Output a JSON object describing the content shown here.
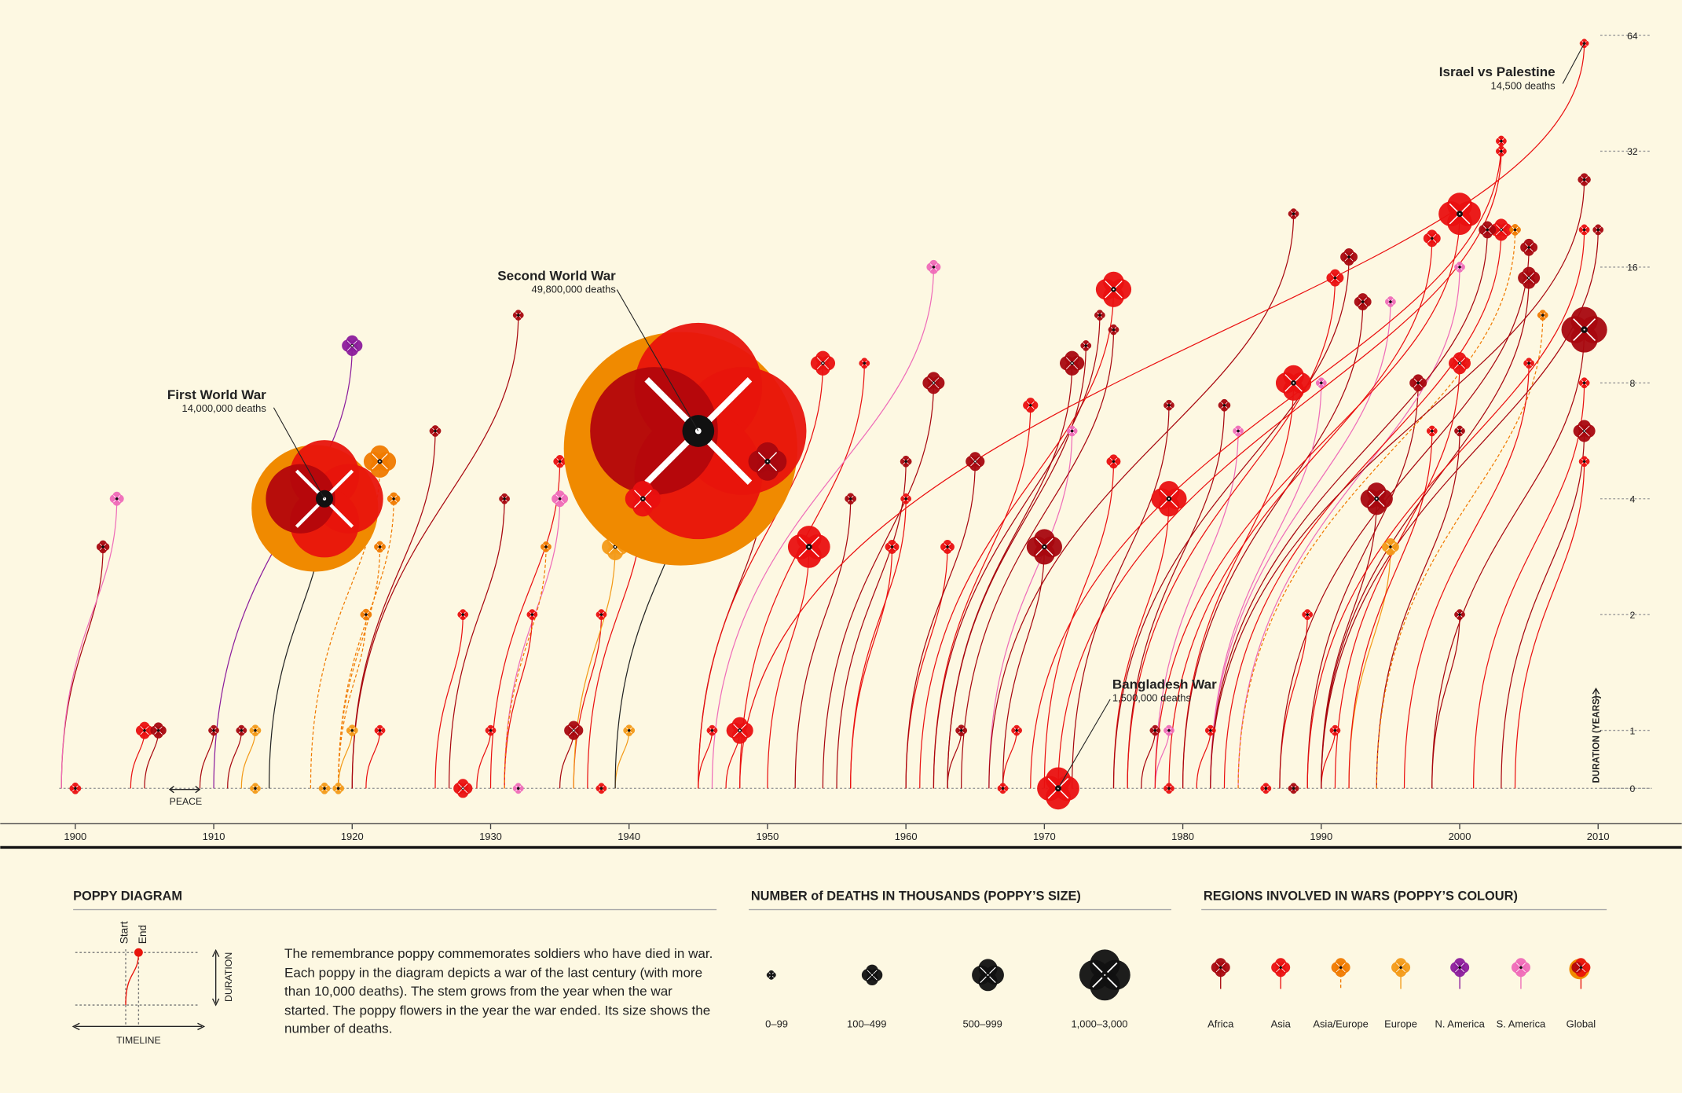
{
  "chart_data": {
    "type": "poppy",
    "xlim": [
      1900,
      2010
    ],
    "xticks": [
      1900,
      1910,
      1920,
      1930,
      1940,
      1950,
      1960,
      1970,
      1980,
      1990,
      2000,
      2010
    ],
    "ylim": [
      0,
      64
    ],
    "yticks": [
      0,
      1,
      2,
      4,
      8,
      16,
      32,
      64
    ],
    "ylog": true,
    "y_label": "DURATION (YEARS)",
    "peace_label": "PEACE",
    "regions": [
      {
        "name": "Africa",
        "color": "#a8070f"
      },
      {
        "name": "Asia",
        "color": "#ea1010"
      },
      {
        "name": "Asia/Europe",
        "color": "#f07a00",
        "dashed": true
      },
      {
        "name": "Europe",
        "color": "#f39a18"
      },
      {
        "name": "N. America",
        "color": "#8c1c9c"
      },
      {
        "name": "S. America",
        "color": "#ef6cb8"
      },
      {
        "name": "Global",
        "color": "#e8140c"
      }
    ],
    "wars": [
      {
        "start": 1900,
        "end": 1900,
        "deaths": 40,
        "region": "Asia"
      },
      {
        "start": 1899,
        "end": 1902,
        "deaths": 60,
        "region": "Africa"
      },
      {
        "start": 1899,
        "end": 1903,
        "deaths": 80,
        "region": "S. America"
      },
      {
        "start": 1904,
        "end": 1905,
        "deaths": 150,
        "region": "Asia"
      },
      {
        "start": 1905,
        "end": 1906,
        "deaths": 120,
        "region": "Africa"
      },
      {
        "start": 1909,
        "end": 1910,
        "deaths": 30,
        "region": "Africa"
      },
      {
        "start": 1911,
        "end": 1912,
        "deaths": 30,
        "region": "Africa"
      },
      {
        "start": 1912,
        "end": 1913,
        "deaths": 40,
        "region": "Europe"
      },
      {
        "start": 1913,
        "end": 1913,
        "deaths": 30,
        "region": "Europe"
      },
      {
        "start": 1910,
        "end": 1920,
        "deaths": 250,
        "region": "N. America"
      },
      {
        "start": 1914,
        "end": 1918,
        "deaths": 14000,
        "region": "Global",
        "name": "First World War",
        "deaths_label": "14,000,000 deaths"
      },
      {
        "start": 1917,
        "end": 1922,
        "deaths": 800,
        "region": "Asia/Europe"
      },
      {
        "start": 1919,
        "end": 1923,
        "deaths": 60,
        "region": "Asia/Europe"
      },
      {
        "start": 1919,
        "end": 1921,
        "deaths": 40,
        "region": "Asia/Europe"
      },
      {
        "start": 1919,
        "end": 1922,
        "deaths": 40,
        "region": "Asia/Europe"
      },
      {
        "start": 1919,
        "end": 1920,
        "deaths": 40,
        "region": "Europe"
      },
      {
        "start": 1921,
        "end": 1922,
        "deaths": 30,
        "region": "Asia"
      },
      {
        "start": 1918,
        "end": 1918,
        "deaths": 40,
        "region": "Europe"
      },
      {
        "start": 1919,
        "end": 1919,
        "deaths": 40,
        "region": "Europe"
      },
      {
        "start": 1920,
        "end": 1926,
        "deaths": 40,
        "region": "Africa"
      },
      {
        "start": 1926,
        "end": 1928,
        "deaths": 30,
        "region": "Asia"
      },
      {
        "start": 1928,
        "end": 1928,
        "deaths": 200,
        "region": "Asia"
      },
      {
        "start": 1929,
        "end": 1930,
        "deaths": 30,
        "region": "Asia"
      },
      {
        "start": 1927,
        "end": 1931,
        "deaths": 30,
        "region": "Africa"
      },
      {
        "start": 1920,
        "end": 1932,
        "deaths": 30,
        "region": "Africa"
      },
      {
        "start": 1932,
        "end": 1932,
        "deaths": 30,
        "region": "S. America"
      },
      {
        "start": 1931,
        "end": 1935,
        "deaths": 130,
        "region": "S. America"
      },
      {
        "start": 1931,
        "end": 1933,
        "deaths": 30,
        "region": "Asia"
      },
      {
        "start": 1931,
        "end": 1934,
        "deaths": 30,
        "region": "Asia/Europe"
      },
      {
        "start": 1930,
        "end": 1935,
        "deaths": 60,
        "region": "Asia"
      },
      {
        "start": 1935,
        "end": 1936,
        "deaths": 200,
        "region": "Africa"
      },
      {
        "start": 1936,
        "end": 1938,
        "deaths": 30,
        "region": "Asia"
      },
      {
        "start": 1936,
        "end": 1939,
        "deaths": 500,
        "region": "Europe"
      },
      {
        "start": 1938,
        "end": 1938,
        "deaths": 30,
        "region": "Asia"
      },
      {
        "start": 1939,
        "end": 1940,
        "deaths": 40,
        "region": "Europe"
      },
      {
        "start": 1939,
        "end": 1945,
        "deaths": 49800,
        "region": "Global",
        "name": "Second World War",
        "deaths_label": "49,800,000 deaths"
      },
      {
        "start": 1937,
        "end": 1941,
        "deaths": 1000,
        "region": "Asia"
      },
      {
        "start": 1945,
        "end": 1950,
        "deaths": 1200,
        "region": "Africa"
      },
      {
        "start": 1947,
        "end": 1948,
        "deaths": 500,
        "region": "Asia"
      },
      {
        "start": 1945,
        "end": 1946,
        "deaths": 30,
        "region": "Asia"
      },
      {
        "start": 1950,
        "end": 1953,
        "deaths": 1500,
        "region": "Asia"
      },
      {
        "start": 1945,
        "end": 1954,
        "deaths": 400,
        "region": "Asia"
      },
      {
        "start": 1948,
        "end": 1957,
        "deaths": 30,
        "region": "Asia"
      },
      {
        "start": 1952,
        "end": 1956,
        "deaths": 40,
        "region": "Africa"
      },
      {
        "start": 1956,
        "end": 1959,
        "deaths": 80,
        "region": "Asia"
      },
      {
        "start": 1955,
        "end": 1960,
        "deaths": 40,
        "region": "Africa"
      },
      {
        "start": 1956,
        "end": 1960,
        "deaths": 30,
        "region": "Asia"
      },
      {
        "start": 1946,
        "end": 1962,
        "deaths": 80,
        "region": "S. America"
      },
      {
        "start": 1954,
        "end": 1962,
        "deaths": 300,
        "region": "Africa"
      },
      {
        "start": 1960,
        "end": 1963,
        "deaths": 80,
        "region": "Asia"
      },
      {
        "start": 1960,
        "end": 1965,
        "deaths": 200,
        "region": "Africa"
      },
      {
        "start": 1963,
        "end": 1964,
        "deaths": 40,
        "region": "Africa"
      },
      {
        "start": 1967,
        "end": 1967,
        "deaths": 30,
        "region": "Asia"
      },
      {
        "start": 1967,
        "end": 1968,
        "deaths": 30,
        "region": "Asia"
      },
      {
        "start": 1962,
        "end": 1969,
        "deaths": 100,
        "region": "Asia"
      },
      {
        "start": 1967,
        "end": 1970,
        "deaths": 1000,
        "region": "Africa"
      },
      {
        "start": 1971,
        "end": 1971,
        "deaths": 1500,
        "region": "Asia",
        "name": "Bangladesh War",
        "deaths_label": "1,500,000 deaths"
      },
      {
        "start": 1963,
        "end": 1972,
        "deaths": 400,
        "region": "Africa"
      },
      {
        "start": 1966,
        "end": 1972,
        "deaths": 30,
        "region": "S. America"
      },
      {
        "start": 1961,
        "end": 1975,
        "deaths": 1000,
        "region": "Asia"
      },
      {
        "start": 1962,
        "end": 1974,
        "deaths": 30,
        "region": "Africa"
      },
      {
        "start": 1964,
        "end": 1975,
        "deaths": 30,
        "region": "Africa"
      },
      {
        "start": 1963,
        "end": 1973,
        "deaths": 30,
        "region": "Africa"
      },
      {
        "start": 1970,
        "end": 1975,
        "deaths": 80,
        "region": "Asia"
      },
      {
        "start": 1975,
        "end": 1979,
        "deaths": 1000,
        "region": "Asia"
      },
      {
        "start": 1972,
        "end": 1979,
        "deaths": 30,
        "region": "Africa"
      },
      {
        "start": 1979,
        "end": 1979,
        "deaths": 30,
        "region": "Asia"
      },
      {
        "start": 1977,
        "end": 1978,
        "deaths": 30,
        "region": "Africa"
      },
      {
        "start": 1978,
        "end": 1979,
        "deaths": 30,
        "region": "S. America"
      },
      {
        "start": 1976,
        "end": 1983,
        "deaths": 50,
        "region": "Africa"
      },
      {
        "start": 1978,
        "end": 1984,
        "deaths": 30,
        "region": "S. America"
      },
      {
        "start": 1981,
        "end": 1982,
        "deaths": 30,
        "region": "Asia"
      },
      {
        "start": 1986,
        "end": 1986,
        "deaths": 30,
        "region": "Asia"
      },
      {
        "start": 1980,
        "end": 1988,
        "deaths": 1000,
        "region": "Asia"
      },
      {
        "start": 1966,
        "end": 1988,
        "deaths": 30,
        "region": "Africa"
      },
      {
        "start": 1987,
        "end": 1989,
        "deaths": 30,
        "region": "Asia"
      },
      {
        "start": 1988,
        "end": 1988,
        "deaths": 30,
        "region": "Africa"
      },
      {
        "start": 1976,
        "end": 1991,
        "deaths": 150,
        "region": "Asia"
      },
      {
        "start": 1975,
        "end": 1992,
        "deaths": 150,
        "region": "Africa"
      },
      {
        "start": 1980,
        "end": 1993,
        "deaths": 150,
        "region": "Africa"
      },
      {
        "start": 1982,
        "end": 1990,
        "deaths": 30,
        "region": "S. America"
      },
      {
        "start": 1990,
        "end": 1991,
        "deaths": 30,
        "region": "Asia"
      },
      {
        "start": 1990,
        "end": 1994,
        "deaths": 800,
        "region": "Africa"
      },
      {
        "start": 1992,
        "end": 1995,
        "deaths": 150,
        "region": "Europe"
      },
      {
        "start": 1982,
        "end": 1995,
        "deaths": 30,
        "region": "S. America"
      },
      {
        "start": 1989,
        "end": 1997,
        "deaths": 150,
        "region": "Africa"
      },
      {
        "start": 1992,
        "end": 1998,
        "deaths": 30,
        "region": "Asia"
      },
      {
        "start": 1979,
        "end": 1998,
        "deaths": 150,
        "region": "Asia"
      },
      {
        "start": 1978,
        "end": 2000,
        "deaths": 1500,
        "region": "Asia"
      },
      {
        "start": 1991,
        "end": 2000,
        "deaths": 300,
        "region": "Asia"
      },
      {
        "start": 1994,
        "end": 2000,
        "deaths": 30,
        "region": "Africa"
      },
      {
        "start": 1998,
        "end": 2000,
        "deaths": 30,
        "region": "Africa"
      },
      {
        "start": 1984,
        "end": 2000,
        "deaths": 30,
        "region": "S. America"
      },
      {
        "start": 1983,
        "end": 2003,
        "deaths": 300,
        "region": "Asia"
      },
      {
        "start": 1969,
        "end": 2003,
        "deaths": 30,
        "region": "Asia"
      },
      {
        "start": 1971,
        "end": 2003,
        "deaths": 30,
        "region": "Asia"
      },
      {
        "start": 1984,
        "end": 2004,
        "deaths": 40,
        "region": "Asia/Europe"
      },
      {
        "start": 1987,
        "end": 2005,
        "deaths": 150,
        "region": "Africa"
      },
      {
        "start": 1990,
        "end": 2005,
        "deaths": 300,
        "region": "Africa"
      },
      {
        "start": 1994,
        "end": 2006,
        "deaths": 30,
        "region": "Asia/Europe"
      },
      {
        "start": 1996,
        "end": 2005,
        "deaths": 30,
        "region": "Asia"
      },
      {
        "start": 1998,
        "end": 2009,
        "deaths": 1800,
        "region": "Africa"
      },
      {
        "start": 1948,
        "end": 2009,
        "deaths": 14.5,
        "region": "Asia",
        "name": "Israel vs Palestine",
        "deaths_label": "14,500 deaths"
      },
      {
        "start": 1982,
        "end": 2009,
        "deaths": 60,
        "region": "Africa"
      },
      {
        "start": 1989,
        "end": 2009,
        "deaths": 30,
        "region": "Asia"
      },
      {
        "start": 2001,
        "end": 2009,
        "deaths": 30,
        "region": "Asia"
      },
      {
        "start": 2003,
        "end": 2009,
        "deaths": 300,
        "region": "Africa"
      },
      {
        "start": 2004,
        "end": 2009,
        "deaths": 30,
        "region": "Asia"
      },
      {
        "start": 1990,
        "end": 2010,
        "deaths": 30,
        "region": "Africa"
      },
      {
        "start": 1982,
        "end": 2002,
        "deaths": 150,
        "region": "Africa"
      }
    ]
  },
  "legend": {
    "diagram_title": "POPPY DIAGRAM",
    "start": "Start",
    "end": "End",
    "duration": "DURATION",
    "timeline": "TIMELINE",
    "text": "The remembrance poppy commemorates soldiers who have died in war. Each poppy in the diagram depicts a war of the last century (with more than 10,000 deaths). The stem grows from the year when the war started. The poppy flowers in the year the war ended. Its size shows the number of deaths.",
    "size_title": "NUMBER of DEATHS IN THOUSANDS (POPPY’S SIZE)",
    "size_labels": [
      "0–99",
      "100–499",
      "500–999",
      "1,000–3,000"
    ],
    "region_title": "REGIONS INVOLVED IN WARS (POPPY’S COLOUR)"
  }
}
